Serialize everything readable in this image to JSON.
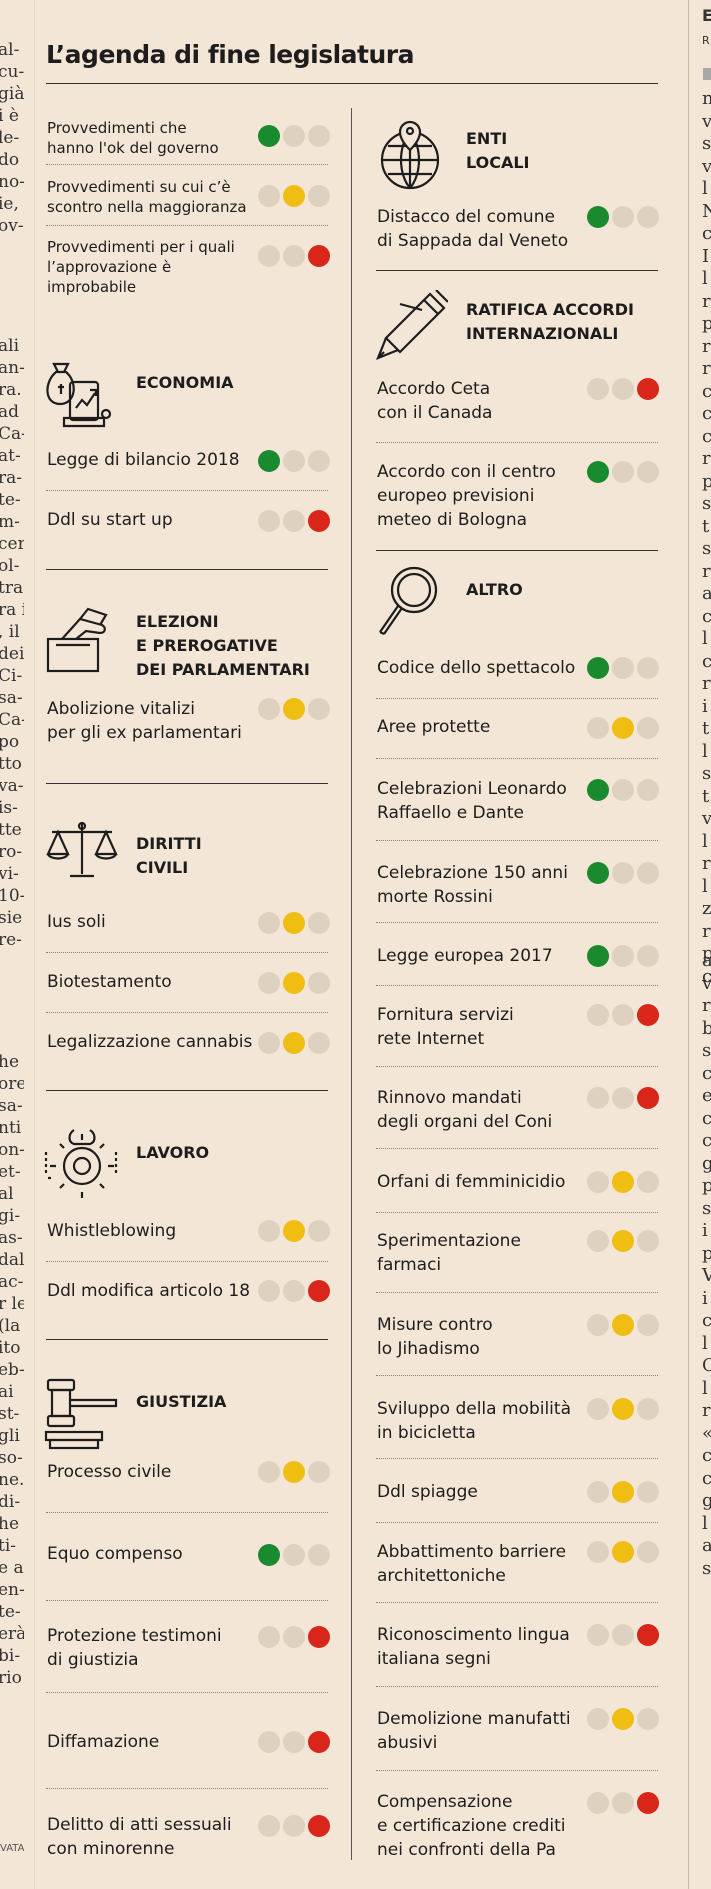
{
  "title": "L’agenda di fine legislatura",
  "legend": [
    {
      "text_1": "Provvedimenti che",
      "text_2": "hanno l'ok del governo",
      "status": "green"
    },
    {
      "text_1": "Provvedimenti su cui c’è",
      "text_2": "scontro nella maggioranza",
      "status": "yellow"
    },
    {
      "text_1": "Provvedimenti per i quali",
      "text_2": "l’approvazione è improbabile",
      "status": "red"
    }
  ],
  "colors": {
    "green": "#1a8a2e",
    "yellow": "#f0be12",
    "red": "#d8261a",
    "off": "#ded1bf",
    "background": "#f3e6d6"
  },
  "sections": {
    "economia": {
      "title_1": "ECONOMIA",
      "icon": "money-bag-chart-icon",
      "items": [
        {
          "label_1": "Legge di bilancio 2018",
          "status": "green"
        },
        {
          "label_1": "Ddl su start up",
          "status": "red"
        }
      ]
    },
    "elezioni": {
      "title_1": "ELEZIONI",
      "title_2": "E PREROGATIVE",
      "title_3": "DEI PARLAMENTARI",
      "icon": "ballot-box-icon",
      "items": [
        {
          "label_1": "Abolizione vitalizi",
          "label_2": "per gli ex parlamentari",
          "status": "yellow"
        }
      ]
    },
    "diritti": {
      "title_1": "DIRITTI",
      "title_2": "CIVILI",
      "icon": "scales-icon",
      "items": [
        {
          "label_1": "Ius soli",
          "status": "yellow"
        },
        {
          "label_1": "Biotestamento",
          "status": "yellow"
        },
        {
          "label_1": "Legalizzazione cannabis",
          "status": "yellow"
        }
      ]
    },
    "lavoro": {
      "title_1": "LAVORO",
      "icon": "gear-wrench-icon",
      "items": [
        {
          "label_1": "Whistleblowing",
          "status": "yellow"
        },
        {
          "label_1": "Ddl modifica articolo 18",
          "status": "red"
        }
      ]
    },
    "giustizia": {
      "title_1": "GIUSTIZIA",
      "icon": "gavel-icon",
      "items": [
        {
          "label_1": "Processo civile",
          "status": "yellow"
        },
        {
          "label_1": "Equo compenso",
          "status": "green"
        },
        {
          "label_1": "Protezione testimoni",
          "label_2": "di giustizia",
          "status": "red"
        },
        {
          "label_1": "Diffamazione",
          "status": "red"
        },
        {
          "label_1": "Delitto di atti sessuali",
          "label_2": "con minorenne",
          "status": "red"
        }
      ]
    },
    "enti": {
      "title_1": "ENTI",
      "title_2": "LOCALI",
      "icon": "globe-pin-icon",
      "items": [
        {
          "label_1": "Distacco del comune",
          "label_2": "di Sappada dal Veneto",
          "status": "green"
        }
      ]
    },
    "ratifica": {
      "title_1": "RATIFICA ACCORDI",
      "title_2": "INTERNAZIONALI",
      "icon": "pen-icon",
      "items": [
        {
          "label_1": "Accordo Ceta",
          "label_2": "con il Canada",
          "status": "red"
        },
        {
          "label_1": "Accordo con il centro",
          "label_2": "europeo previsioni",
          "label_3": "meteo di Bologna",
          "status": "green"
        }
      ]
    },
    "altro": {
      "title_1": "ALTRO",
      "icon": "magnifier-icon",
      "items": [
        {
          "label_1": "Codice dello spettacolo",
          "status": "green"
        },
        {
          "label_1": "Aree protette",
          "status": "yellow"
        },
        {
          "label_1": "Celebrazioni  Leonardo",
          "label_2": "Raffaello e Dante",
          "status": "green"
        },
        {
          "label_1": "Celebrazione 150 anni",
          "label_2": "morte Rossini",
          "status": "green"
        },
        {
          "label_1": "Legge europea 2017",
          "status": "green"
        },
        {
          "label_1": "Fornitura servizi",
          "label_2": "rete Internet",
          "status": "red"
        },
        {
          "label_1": "Rinnovo mandati",
          "label_2": "degli organi del Coni",
          "status": "red"
        },
        {
          "label_1": "Orfani di femminicidio",
          "status": "yellow"
        },
        {
          "label_1": "Sperimentazione",
          "label_2": "farmaci",
          "status": "yellow"
        },
        {
          "label_1": "Misure contro",
          "label_2": "lo Jihadismo",
          "status": "yellow"
        },
        {
          "label_1": "Sviluppo della mobilità",
          "label_2": "in bicicletta",
          "status": "yellow"
        },
        {
          "label_1": "Ddl spiagge",
          "status": "yellow"
        },
        {
          "label_1": "Abbattimento barriere",
          "label_2": "architettoniche",
          "status": "yellow"
        },
        {
          "label_1": "Riconoscimento lingua",
          "label_2": "italiana segni",
          "status": "red"
        },
        {
          "label_1": "Demolizione manufatti",
          "label_2": "abusivi",
          "status": "yellow"
        },
        {
          "label_1": "Compensazione",
          "label_2": "e certificazione crediti",
          "label_3": "nei confronti della Pa",
          "status": "red"
        }
      ]
    }
  },
  "left_fragments": [
    "al-",
    "cu-",
    "già",
    "i è",
    "le-",
    "do",
    "no-",
    "ie,",
    "ov-",
    "ali",
    "an-",
    "ra.",
    "ad",
    "Ca-",
    "at-",
    "ra-",
    "te-",
    "m-",
    "cer",
    "ol-",
    "tra",
    "ra i",
    ", il",
    "dei",
    "Ci-",
    "sa-",
    "Ca-",
    "po",
    "tto",
    "va-",
    "is-",
    "tte",
    "ro-",
    "vi-",
    "10-",
    "sie",
    "re-",
    "he",
    "ore",
    "sa-",
    "nti",
    "on-",
    "et-",
    "al",
    "gi-",
    "as-",
    "dal",
    "ac-",
    "r le",
    "(la",
    "ito",
    "eb-",
    "ai",
    "st-",
    "gli",
    "so-",
    "ne.",
    "di-",
    "he",
    "ti-",
    "e a",
    "en-",
    "te-",
    "erà",
    "bi-",
    "rio"
  ],
  "right_fragments": [
    "E",
    "R",
    "n",
    "v",
    "s",
    "v",
    "l",
    "N",
    "c",
    "I",
    "l",
    "r",
    "p",
    "r",
    "r",
    "c",
    "c",
    "c",
    "r",
    "p",
    "s",
    "t",
    "s",
    "r",
    "a",
    "c",
    "l",
    "c",
    "r",
    "i",
    "t",
    "l",
    "s",
    "t",
    "v",
    "l",
    "r",
    "l",
    "z",
    "r",
    "p",
    "c",
    "a",
    "v",
    "r",
    "b",
    "s",
    "c",
    "e",
    "c",
    "c",
    "g",
    "p",
    "s",
    "i",
    "p",
    "V",
    "i",
    "c",
    "l",
    "C",
    "l",
    "r",
    "«",
    "c",
    "c",
    "g",
    "l",
    "a",
    "s"
  ],
  "source_fragment": "VATA"
}
